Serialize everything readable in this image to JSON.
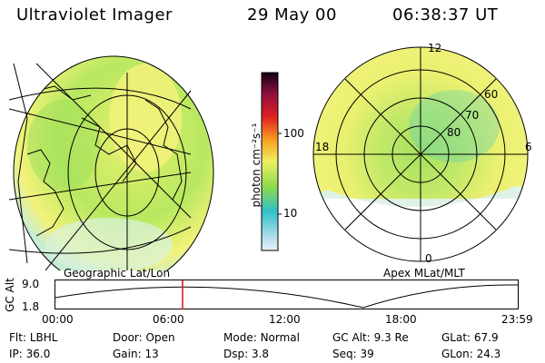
{
  "header": {
    "title": "Ultraviolet Imager",
    "date": "29 May 00",
    "time": "06:38:37 UT"
  },
  "colorbar": {
    "label": "photon cm⁻²s⁻¹",
    "ticks": [
      "100",
      "10"
    ]
  },
  "left_panel": {
    "caption": "Geographic Lat/Lon"
  },
  "right_panel": {
    "caption": "Apex MLat/MLT",
    "mlt_labels": [
      "12",
      "18",
      "6",
      "0"
    ],
    "lat_labels": [
      "60",
      "70",
      "80"
    ]
  },
  "altitude_plot": {
    "ylabel": "GC Alt",
    "yticks": [
      "9.0",
      "1.8"
    ],
    "xticks": [
      "00:00",
      "06:00",
      "12:00",
      "18:00",
      "23:59"
    ],
    "marker_time": "06:38"
  },
  "status": {
    "flt_label": "Flt:",
    "flt_value": "LBHL",
    "ip_label": "IP:",
    "ip_value": "36.0",
    "door_label": "Door:",
    "door_value": "Open",
    "gain_label": "Gain:",
    "gain_value": "13",
    "mode_label": "Mode:",
    "mode_value": "Normal",
    "dsp_label": "Dsp:",
    "dsp_value": "3.8",
    "gcalt_label": "GC Alt:",
    "gcalt_value": "9.3 Re",
    "seq_label": "Seq:",
    "seq_value": "39",
    "glat_label": "GLat:",
    "glat_value": "67.9",
    "glon_label": "GLon:",
    "glon_value": "24.3"
  },
  "colors": {
    "aurora_yellow": "#f0f070",
    "aurora_green": "#9ee05a",
    "aurora_cyan": "#5ad2b4",
    "marker_red": "#e01010"
  }
}
